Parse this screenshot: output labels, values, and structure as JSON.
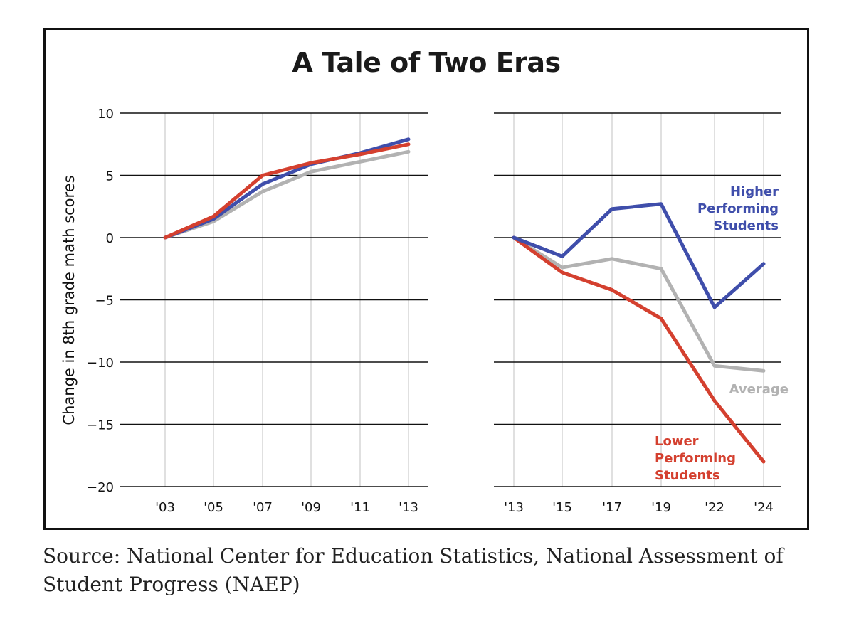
{
  "title": "A Tale of Two Eras",
  "source": "Source: National Center for Education Statistics, National Assessment of Student Progress (NAEP)",
  "colors": {
    "blue": "#3f4eab",
    "red": "#d4402f",
    "gray": "#b2b2b2",
    "grid": "#d6d6d6",
    "axis": "#111111"
  },
  "chart_data": [
    {
      "type": "line",
      "ylabel": "Change in 8th grade math scores",
      "ylim": [
        -20,
        10
      ],
      "yticks": [
        "10",
        "5",
        "0",
        "-5",
        "-10",
        "-15",
        "-20"
      ],
      "ytick_values": [
        10,
        5,
        0,
        -5,
        -10,
        -15,
        -20
      ],
      "categories": [
        "'03",
        "'05",
        "'07",
        "'09",
        "'11",
        "'13"
      ],
      "grid": true,
      "series": [
        {
          "key": "gray",
          "values": [
            0,
            1.3,
            3.7,
            5.3,
            6.1,
            6.9
          ]
        },
        {
          "key": "blue",
          "values": [
            0,
            1.5,
            4.3,
            5.9,
            6.8,
            7.9
          ]
        },
        {
          "key": "red",
          "values": [
            0,
            1.7,
            5.0,
            6.0,
            6.7,
            7.5
          ]
        }
      ]
    },
    {
      "type": "line",
      "ylim": [
        -20,
        10
      ],
      "categories": [
        "'13",
        "'15",
        "'17",
        "'19",
        "'22",
        "'24"
      ],
      "grid": true,
      "series": [
        {
          "key": "gray",
          "name": "Average",
          "label_lines": [
            "Average"
          ],
          "values": [
            0,
            -2.4,
            -1.7,
            -2.5,
            -10.3,
            -10.7
          ]
        },
        {
          "key": "blue",
          "name": "Higher Performing Students",
          "label_lines": [
            "Higher",
            "Performing",
            "Students"
          ],
          "values": [
            0,
            -1.5,
            2.3,
            2.7,
            -5.6,
            -2.1
          ]
        },
        {
          "key": "red",
          "name": "Lower Performing Students",
          "label_lines": [
            "Lower",
            "Performing",
            "Students"
          ],
          "values": [
            0,
            -2.8,
            -4.2,
            -6.5,
            -13.1,
            -18.0
          ]
        }
      ]
    }
  ]
}
